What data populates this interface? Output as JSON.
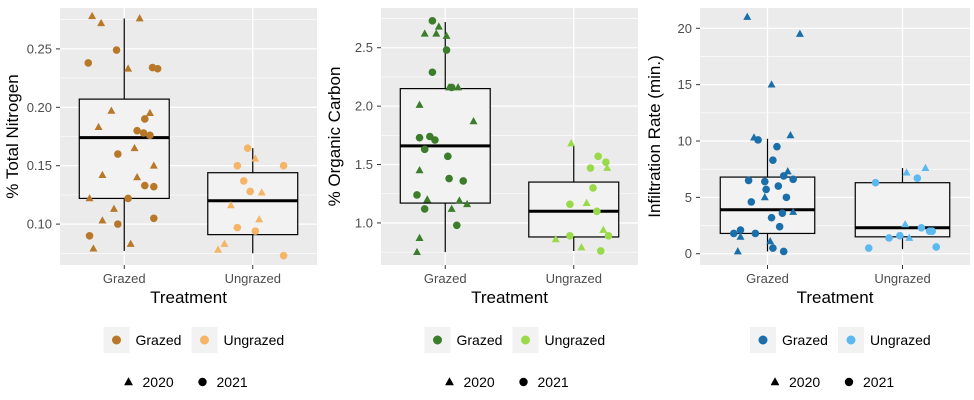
{
  "chart_data": [
    {
      "type": "boxplot",
      "xlabel": "Treatment",
      "ylabel": "% Total Nitrogen",
      "categories": [
        "Grazed",
        "Ungrazed"
      ],
      "ylim": [
        0.065,
        0.285
      ],
      "yticks": [
        0.1,
        0.15,
        0.2,
        0.25
      ],
      "ytick_labels": [
        "0.10",
        "0.15",
        "0.20",
        "0.25"
      ],
      "colors": {
        "Grazed": "#b8782a",
        "Ungrazed": "#f5b466"
      },
      "boxes": [
        {
          "category": "Grazed",
          "min": 0.077,
          "q1": 0.122,
          "median": 0.174,
          "q3": 0.207,
          "max": 0.276
        },
        {
          "category": "Ungrazed",
          "min": 0.075,
          "q1": 0.091,
          "median": 0.12,
          "q3": 0.144,
          "max": 0.165
        }
      ],
      "points": [
        {
          "category": "Grazed",
          "year": "2020",
          "jitter": -0.25,
          "y": 0.278
        },
        {
          "category": "Grazed",
          "year": "2020",
          "jitter": 0.12,
          "y": 0.276
        },
        {
          "category": "Grazed",
          "year": "2020",
          "jitter": -0.18,
          "y": 0.272
        },
        {
          "category": "Grazed",
          "year": "2021",
          "jitter": -0.06,
          "y": 0.249
        },
        {
          "category": "Grazed",
          "year": "2021",
          "jitter": -0.28,
          "y": 0.238
        },
        {
          "category": "Grazed",
          "year": "2020",
          "jitter": 0.03,
          "y": 0.233
        },
        {
          "category": "Grazed",
          "year": "2021",
          "jitter": 0.22,
          "y": 0.234
        },
        {
          "category": "Grazed",
          "year": "2021",
          "jitter": 0.26,
          "y": 0.233
        },
        {
          "category": "Grazed",
          "year": "2020",
          "jitter": -0.1,
          "y": 0.197
        },
        {
          "category": "Grazed",
          "year": "2020",
          "jitter": 0.2,
          "y": 0.195
        },
        {
          "category": "Grazed",
          "year": "2021",
          "jitter": 0.16,
          "y": 0.19
        },
        {
          "category": "Grazed",
          "year": "2020",
          "jitter": -0.2,
          "y": 0.183
        },
        {
          "category": "Grazed",
          "year": "2021",
          "jitter": 0.1,
          "y": 0.18
        },
        {
          "category": "Grazed",
          "year": "2021",
          "jitter": 0.15,
          "y": 0.178
        },
        {
          "category": "Grazed",
          "year": "2021",
          "jitter": 0.2,
          "y": 0.176
        },
        {
          "category": "Grazed",
          "year": "2020",
          "jitter": 0.08,
          "y": 0.165
        },
        {
          "category": "Grazed",
          "year": "2021",
          "jitter": -0.05,
          "y": 0.16
        },
        {
          "category": "Grazed",
          "year": "2020",
          "jitter": 0.23,
          "y": 0.15
        },
        {
          "category": "Grazed",
          "year": "2020",
          "jitter": 0.1,
          "y": 0.14
        },
        {
          "category": "Grazed",
          "year": "2020",
          "jitter": -0.17,
          "y": 0.142
        },
        {
          "category": "Grazed",
          "year": "2021",
          "jitter": 0.16,
          "y": 0.133
        },
        {
          "category": "Grazed",
          "year": "2021",
          "jitter": 0.23,
          "y": 0.132
        },
        {
          "category": "Grazed",
          "year": "2020",
          "jitter": -0.27,
          "y": 0.122
        },
        {
          "category": "Grazed",
          "year": "2021",
          "jitter": 0.03,
          "y": 0.122
        },
        {
          "category": "Grazed",
          "year": "2020",
          "jitter": -0.08,
          "y": 0.113
        },
        {
          "category": "Grazed",
          "year": "2021",
          "jitter": 0.23,
          "y": 0.105
        },
        {
          "category": "Grazed",
          "year": "2020",
          "jitter": -0.17,
          "y": 0.103
        },
        {
          "category": "Grazed",
          "year": "2021",
          "jitter": -0.05,
          "y": 0.1
        },
        {
          "category": "Grazed",
          "year": "2021",
          "jitter": -0.27,
          "y": 0.09
        },
        {
          "category": "Grazed",
          "year": "2020",
          "jitter": 0.05,
          "y": 0.083
        },
        {
          "category": "Grazed",
          "year": "2020",
          "jitter": -0.24,
          "y": 0.079
        },
        {
          "category": "Ungrazed",
          "year": "2021",
          "jitter": -0.04,
          "y": 0.165
        },
        {
          "category": "Ungrazed",
          "year": "2020",
          "jitter": 0.02,
          "y": 0.156
        },
        {
          "category": "Ungrazed",
          "year": "2021",
          "jitter": -0.12,
          "y": 0.15
        },
        {
          "category": "Ungrazed",
          "year": "2021",
          "jitter": 0.24,
          "y": 0.15
        },
        {
          "category": "Ungrazed",
          "year": "2021",
          "jitter": -0.07,
          "y": 0.137
        },
        {
          "category": "Ungrazed",
          "year": "2021",
          "jitter": -0.02,
          "y": 0.128
        },
        {
          "category": "Ungrazed",
          "year": "2020",
          "jitter": 0.07,
          "y": 0.127
        },
        {
          "category": "Ungrazed",
          "year": "2020",
          "jitter": -0.17,
          "y": 0.116
        },
        {
          "category": "Ungrazed",
          "year": "2020",
          "jitter": 0.05,
          "y": 0.104
        },
        {
          "category": "Ungrazed",
          "year": "2021",
          "jitter": -0.12,
          "y": 0.097
        },
        {
          "category": "Ungrazed",
          "year": "2021",
          "jitter": 0.02,
          "y": 0.094
        },
        {
          "category": "Ungrazed",
          "year": "2020",
          "jitter": -0.22,
          "y": 0.083
        },
        {
          "category": "Ungrazed",
          "year": "2020",
          "jitter": -0.27,
          "y": 0.078
        },
        {
          "category": "Ungrazed",
          "year": "2021",
          "jitter": 0.24,
          "y": 0.073
        }
      ]
    },
    {
      "type": "boxplot",
      "xlabel": "Treatment",
      "ylabel": "% Organic Carbon",
      "categories": [
        "Grazed",
        "Ungrazed"
      ],
      "ylim": [
        0.64,
        2.84
      ],
      "yticks": [
        1.0,
        1.5,
        2.0,
        2.5
      ],
      "ytick_labels": [
        "1.0",
        "1.5",
        "2.0",
        "2.5"
      ],
      "colors": {
        "Grazed": "#3b7d2b",
        "Ungrazed": "#9ad94a"
      },
      "boxes": [
        {
          "category": "Grazed",
          "min": 0.75,
          "q1": 1.17,
          "median": 1.66,
          "q3": 2.15,
          "max": 2.72
        },
        {
          "category": "Ungrazed",
          "min": 0.76,
          "q1": 0.88,
          "median": 1.1,
          "q3": 1.35,
          "max": 1.66
        }
      ],
      "points": [
        {
          "category": "Grazed",
          "year": "2021",
          "jitter": -0.1,
          "y": 2.73
        },
        {
          "category": "Grazed",
          "year": "2020",
          "jitter": -0.05,
          "y": 2.68
        },
        {
          "category": "Grazed",
          "year": "2020",
          "jitter": -0.16,
          "y": 2.62
        },
        {
          "category": "Grazed",
          "year": "2020",
          "jitter": -0.07,
          "y": 2.62
        },
        {
          "category": "Grazed",
          "year": "2020",
          "jitter": 0.01,
          "y": 2.6
        },
        {
          "category": "Grazed",
          "year": "2021",
          "jitter": 0.01,
          "y": 2.48
        },
        {
          "category": "Grazed",
          "year": "2021",
          "jitter": -0.1,
          "y": 2.29
        },
        {
          "category": "Grazed",
          "year": "2021",
          "jitter": 0.05,
          "y": 2.16
        },
        {
          "category": "Grazed",
          "year": "2020",
          "jitter": 0.03,
          "y": 2.16
        },
        {
          "category": "Grazed",
          "year": "2020",
          "jitter": 0.1,
          "y": 2.16
        },
        {
          "category": "Grazed",
          "year": "2020",
          "jitter": -0.2,
          "y": 2.01
        },
        {
          "category": "Grazed",
          "year": "2020",
          "jitter": 0.22,
          "y": 1.87
        },
        {
          "category": "Grazed",
          "year": "2021",
          "jitter": -0.2,
          "y": 1.73
        },
        {
          "category": "Grazed",
          "year": "2021",
          "jitter": -0.12,
          "y": 1.74
        },
        {
          "category": "Grazed",
          "year": "2021",
          "jitter": -0.08,
          "y": 1.71
        },
        {
          "category": "Grazed",
          "year": "2021",
          "jitter": -0.16,
          "y": 1.63
        },
        {
          "category": "Grazed",
          "year": "2021",
          "jitter": 0.02,
          "y": 1.57
        },
        {
          "category": "Grazed",
          "year": "2020",
          "jitter": -0.2,
          "y": 1.45
        },
        {
          "category": "Grazed",
          "year": "2021",
          "jitter": 0.03,
          "y": 1.38
        },
        {
          "category": "Grazed",
          "year": "2021",
          "jitter": 0.14,
          "y": 1.36
        },
        {
          "category": "Grazed",
          "year": "2021",
          "jitter": -0.22,
          "y": 1.24
        },
        {
          "category": "Grazed",
          "year": "2020",
          "jitter": -0.14,
          "y": 1.2
        },
        {
          "category": "Grazed",
          "year": "2020",
          "jitter": 0.11,
          "y": 1.19
        },
        {
          "category": "Grazed",
          "year": "2020",
          "jitter": 0.17,
          "y": 1.16
        },
        {
          "category": "Grazed",
          "year": "2021",
          "jitter": -0.16,
          "y": 1.12
        },
        {
          "category": "Grazed",
          "year": "2020",
          "jitter": 0.05,
          "y": 1.12
        },
        {
          "category": "Grazed",
          "year": "2021",
          "jitter": 0.09,
          "y": 0.98
        },
        {
          "category": "Grazed",
          "year": "2020",
          "jitter": -0.2,
          "y": 0.87
        },
        {
          "category": "Grazed",
          "year": "2020",
          "jitter": -0.22,
          "y": 0.75
        },
        {
          "category": "Ungrazed",
          "year": "2020",
          "jitter": -0.02,
          "y": 1.68
        },
        {
          "category": "Ungrazed",
          "year": "2021",
          "jitter": 0.19,
          "y": 1.57
        },
        {
          "category": "Ungrazed",
          "year": "2021",
          "jitter": 0.25,
          "y": 1.52
        },
        {
          "category": "Ungrazed",
          "year": "2021",
          "jitter": 0.13,
          "y": 1.47
        },
        {
          "category": "Ungrazed",
          "year": "2020",
          "jitter": 0.26,
          "y": 1.47
        },
        {
          "category": "Ungrazed",
          "year": "2021",
          "jitter": 0.15,
          "y": 1.3
        },
        {
          "category": "Ungrazed",
          "year": "2020",
          "jitter": 0.1,
          "y": 1.17
        },
        {
          "category": "Ungrazed",
          "year": "2021",
          "jitter": -0.03,
          "y": 1.16
        },
        {
          "category": "Ungrazed",
          "year": "2021",
          "jitter": 0.18,
          "y": 1.1
        },
        {
          "category": "Ungrazed",
          "year": "2020",
          "jitter": 0.23,
          "y": 0.94
        },
        {
          "category": "Ungrazed",
          "year": "2021",
          "jitter": -0.03,
          "y": 0.89
        },
        {
          "category": "Ungrazed",
          "year": "2021",
          "jitter": 0.27,
          "y": 0.89
        },
        {
          "category": "Ungrazed",
          "year": "2020",
          "jitter": -0.14,
          "y": 0.86
        },
        {
          "category": "Ungrazed",
          "year": "2020",
          "jitter": 0.06,
          "y": 0.79
        },
        {
          "category": "Ungrazed",
          "year": "2021",
          "jitter": 0.21,
          "y": 0.76
        }
      ]
    },
    {
      "type": "boxplot",
      "xlabel": "Treatment",
      "ylabel": "Infiltration Rate (min.)",
      "categories": [
        "Grazed",
        "Ungrazed"
      ],
      "ylim": [
        -1.0,
        21.8
      ],
      "yticks": [
        0,
        5,
        10,
        15,
        20
      ],
      "ytick_labels": [
        "0",
        "5",
        "10",
        "15",
        "20"
      ],
      "colors": {
        "Grazed": "#1a6ea9",
        "Ungrazed": "#5cb9f0"
      },
      "boxes": [
        {
          "category": "Grazed",
          "min": 0.2,
          "q1": 1.8,
          "median": 3.9,
          "q3": 6.8,
          "max": 10.2
        },
        {
          "category": "Ungrazed",
          "min": 0.4,
          "q1": 1.5,
          "median": 2.3,
          "q3": 6.3,
          "max": 7.6
        }
      ],
      "points": [
        {
          "category": "Grazed",
          "year": "2020",
          "jitter": -0.15,
          "y": 21.0
        },
        {
          "category": "Grazed",
          "year": "2020",
          "jitter": 0.24,
          "y": 19.5
        },
        {
          "category": "Grazed",
          "year": "2020",
          "jitter": 0.03,
          "y": 15.0
        },
        {
          "category": "Grazed",
          "year": "2020",
          "jitter": -0.1,
          "y": 10.3
        },
        {
          "category": "Grazed",
          "year": "2020",
          "jitter": 0.17,
          "y": 10.5
        },
        {
          "category": "Grazed",
          "year": "2021",
          "jitter": -0.07,
          "y": 10.1
        },
        {
          "category": "Grazed",
          "year": "2021",
          "jitter": 0.07,
          "y": 9.5
        },
        {
          "category": "Grazed",
          "year": "2021",
          "jitter": 0.04,
          "y": 8.3
        },
        {
          "category": "Grazed",
          "year": "2020",
          "jitter": 0.15,
          "y": 7.3
        },
        {
          "category": "Grazed",
          "year": "2021",
          "jitter": 0.12,
          "y": 6.9
        },
        {
          "category": "Grazed",
          "year": "2021",
          "jitter": 0.19,
          "y": 6.6
        },
        {
          "category": "Grazed",
          "year": "2021",
          "jitter": -0.14,
          "y": 6.5
        },
        {
          "category": "Grazed",
          "year": "2021",
          "jitter": -0.02,
          "y": 6.4
        },
        {
          "category": "Grazed",
          "year": "2021",
          "jitter": 0.08,
          "y": 6.0
        },
        {
          "category": "Grazed",
          "year": "2021",
          "jitter": -0.01,
          "y": 5.7
        },
        {
          "category": "Grazed",
          "year": "2021",
          "jitter": 0.14,
          "y": 5.0
        },
        {
          "category": "Grazed",
          "year": "2020",
          "jitter": -0.02,
          "y": 5.0
        },
        {
          "category": "Grazed",
          "year": "2021",
          "jitter": -0.12,
          "y": 4.6
        },
        {
          "category": "Grazed",
          "year": "2021",
          "jitter": 0.11,
          "y": 3.6
        },
        {
          "category": "Grazed",
          "year": "2020",
          "jitter": 0.19,
          "y": 3.7
        },
        {
          "category": "Grazed",
          "year": "2021",
          "jitter": 0.03,
          "y": 3.2
        },
        {
          "category": "Grazed",
          "year": "2021",
          "jitter": 0.09,
          "y": 2.4
        },
        {
          "category": "Grazed",
          "year": "2021",
          "jitter": -0.2,
          "y": 2.1
        },
        {
          "category": "Grazed",
          "year": "2021",
          "jitter": -0.09,
          "y": 1.8
        },
        {
          "category": "Grazed",
          "year": "2021",
          "jitter": -0.25,
          "y": 1.8
        },
        {
          "category": "Grazed",
          "year": "2020",
          "jitter": -0.2,
          "y": 1.5
        },
        {
          "category": "Grazed",
          "year": "2020",
          "jitter": 0.02,
          "y": 1.1
        },
        {
          "category": "Grazed",
          "year": "2021",
          "jitter": 0.04,
          "y": 0.5
        },
        {
          "category": "Grazed",
          "year": "2021",
          "jitter": 0.12,
          "y": 0.2
        },
        {
          "category": "Grazed",
          "year": "2020",
          "jitter": -0.22,
          "y": 0.2
        },
        {
          "category": "Ungrazed",
          "year": "2020",
          "jitter": 0.17,
          "y": 7.6
        },
        {
          "category": "Ungrazed",
          "year": "2020",
          "jitter": 0.03,
          "y": 7.2
        },
        {
          "category": "Ungrazed",
          "year": "2021",
          "jitter": 0.11,
          "y": 6.7
        },
        {
          "category": "Ungrazed",
          "year": "2021",
          "jitter": -0.2,
          "y": 6.3
        },
        {
          "category": "Ungrazed",
          "year": "2020",
          "jitter": 0.02,
          "y": 2.6
        },
        {
          "category": "Ungrazed",
          "year": "2021",
          "jitter": 0.14,
          "y": 2.3
        },
        {
          "category": "Ungrazed",
          "year": "2021",
          "jitter": 0.2,
          "y": 2.0
        },
        {
          "category": "Ungrazed",
          "year": "2021",
          "jitter": 0.22,
          "y": 2.0
        },
        {
          "category": "Ungrazed",
          "year": "2021",
          "jitter": -0.02,
          "y": 1.6
        },
        {
          "category": "Ungrazed",
          "year": "2020",
          "jitter": 0.05,
          "y": 1.4
        },
        {
          "category": "Ungrazed",
          "year": "2021",
          "jitter": -0.1,
          "y": 1.4
        },
        {
          "category": "Ungrazed",
          "year": "2021",
          "jitter": 0.25,
          "y": 0.6
        },
        {
          "category": "Ungrazed",
          "year": "2021",
          "jitter": -0.25,
          "y": 0.5
        }
      ]
    }
  ],
  "legend": {
    "treatment_entries": [
      "Grazed",
      "Ungrazed"
    ],
    "year_entries": [
      "2020",
      "2021"
    ],
    "year_shapes": {
      "2020": "triangle",
      "2021": "circle"
    },
    "position": "bottom"
  },
  "style": {
    "panel_background": "#ebebeb",
    "grid_color": "#ffffff",
    "box_fill": "#f2f2f2",
    "line_color": "#000000",
    "year_symbol_color": "#000000"
  }
}
